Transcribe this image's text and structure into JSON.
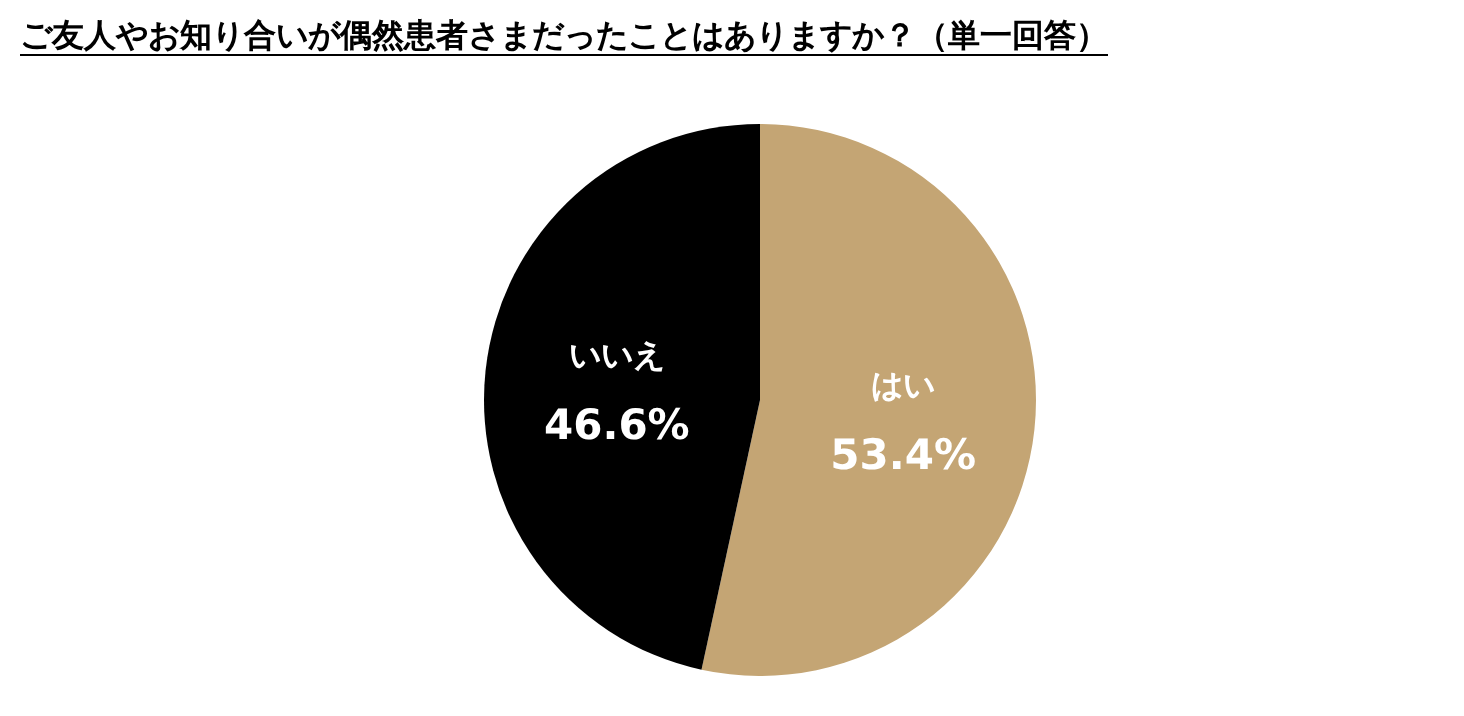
{
  "chart_data": {
    "type": "pie",
    "title": "ご友人やお知り合いが偶然患者さまだったことはありますか？（単一回答）",
    "categories": [
      "はい",
      "いいえ"
    ],
    "values": [
      53.4,
      46.6
    ],
    "colors": [
      "#c4a574",
      "#000000"
    ],
    "value_labels": [
      "53.4%",
      "46.6%"
    ],
    "legend": false
  }
}
